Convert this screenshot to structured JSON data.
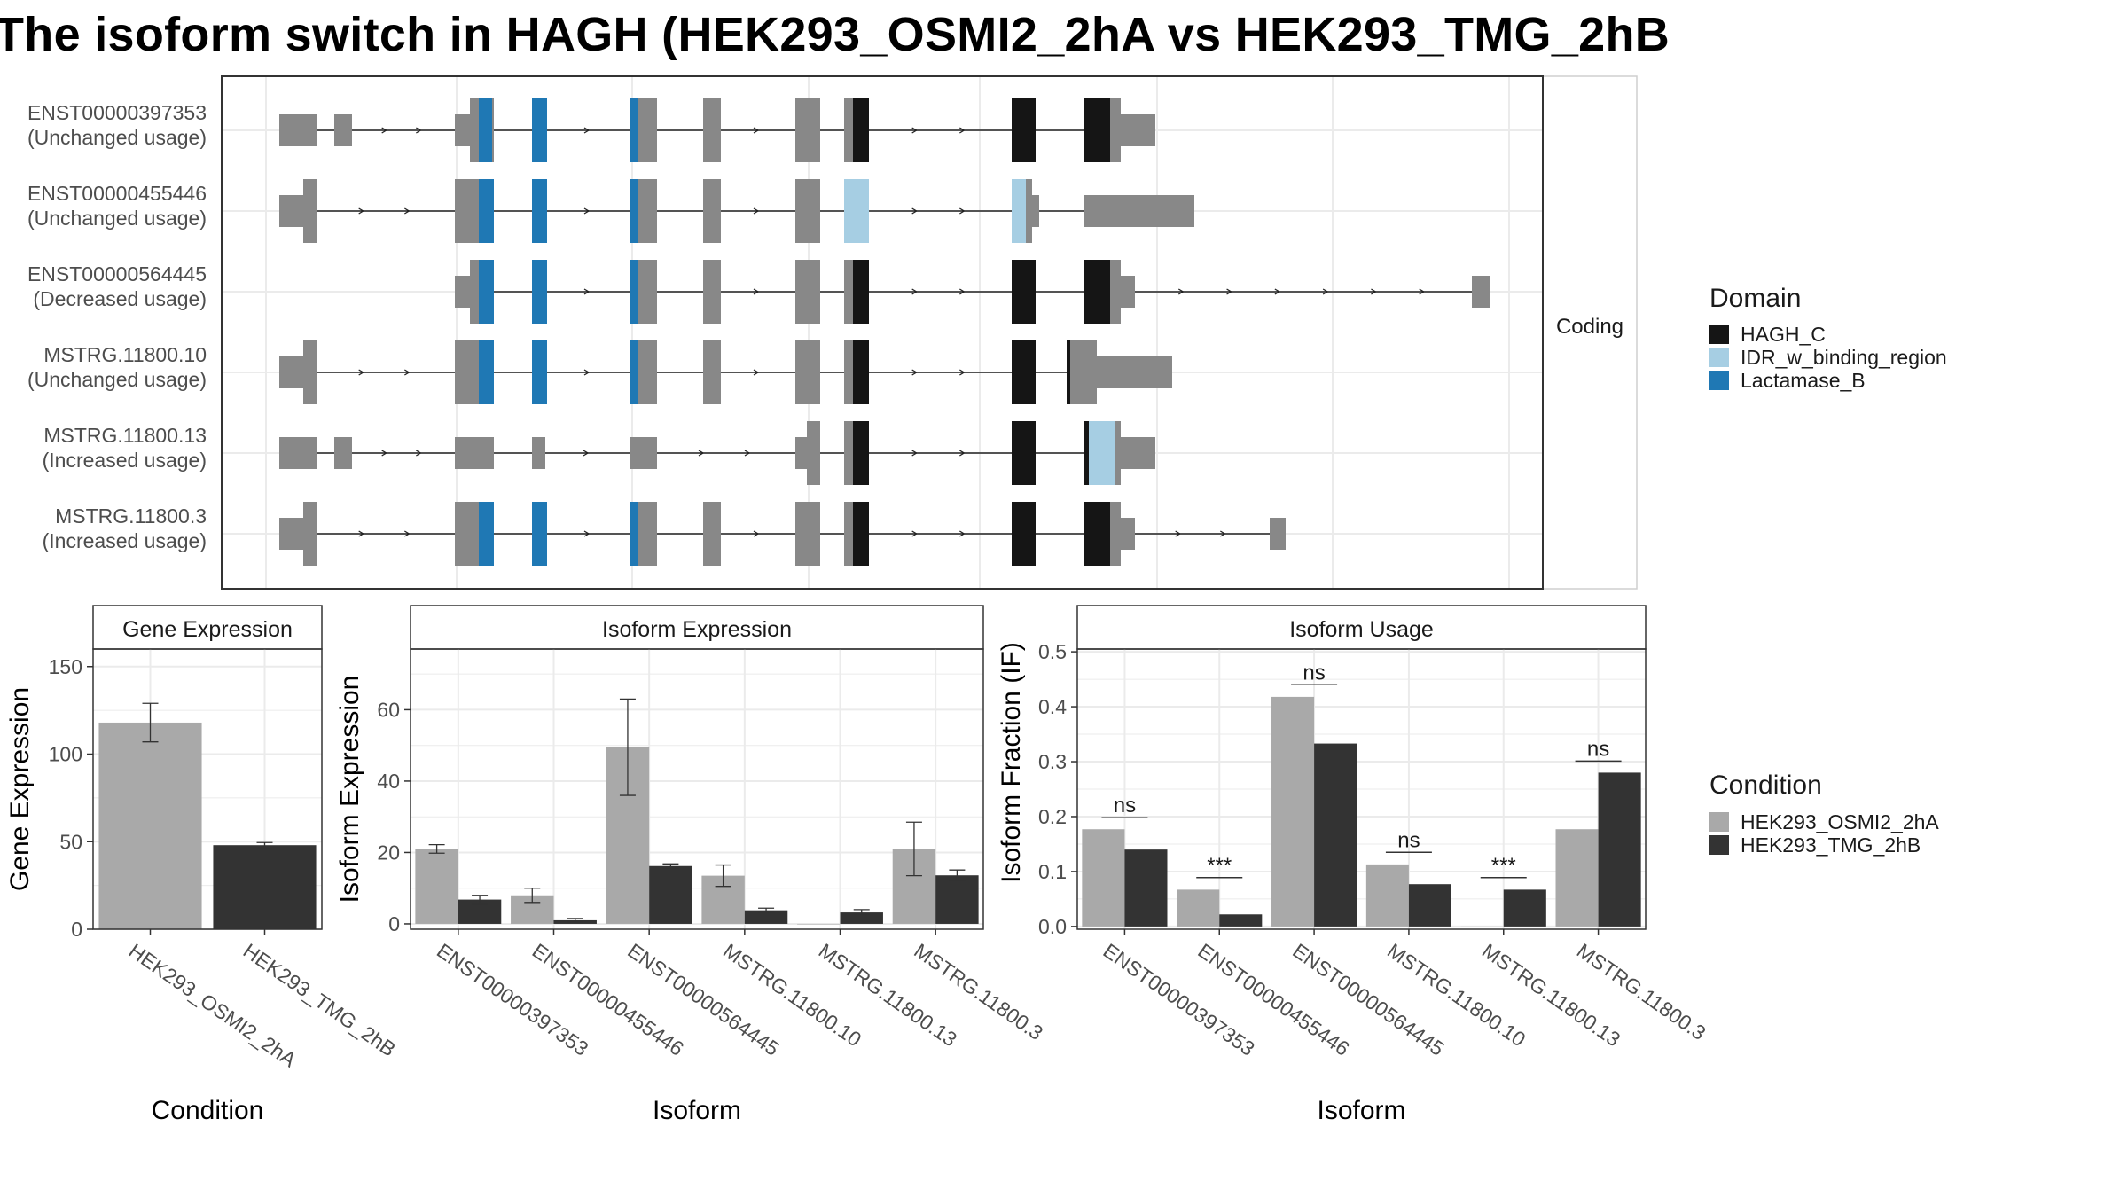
{
  "title": "The isoform switch in HAGH (HEK293_OSMI2_2hA vs HEK293_TMG_2hB",
  "facet_label": "Coding",
  "colors": {
    "exon_gray": "#888888",
    "HAGH_C": "#151515",
    "IDR_w_binding_region": "#A6CEE3",
    "Lactamase_B": "#1F78B4",
    "cond_A": "#A9A9A9",
    "cond_B": "#333333",
    "grid": "#EBEBEB",
    "panel_border": "#333333",
    "strip_fill": "#FFFFFF"
  },
  "domain_legend": {
    "title": "Domain",
    "entries": [
      "HAGH_C",
      "IDR_w_binding_region",
      "Lactamase_B"
    ]
  },
  "condition_legend": {
    "title": "Condition",
    "entries": [
      "HEK293_OSMI2_2hA",
      "HEK293_TMG_2hB"
    ]
  },
  "transcripts": [
    {
      "id": "ENST00000397353",
      "usage": "(Unchanged usage)"
    },
    {
      "id": "ENST00000455446",
      "usage": "(Unchanged usage)"
    },
    {
      "id": "ENST00000564445",
      "usage": "(Decreased usage)"
    },
    {
      "id": "MSTRG.11800.10",
      "usage": "(Unchanged usage)"
    },
    {
      "id": "MSTRG.11800.13",
      "usage": "(Increased usage)"
    },
    {
      "id": "MSTRG.11800.3",
      "usage": "(Increased usage)"
    }
  ],
  "chart_data": [
    {
      "type": "bar",
      "title": "Gene Expression",
      "xlabel": "Condition",
      "ylabel": "Gene Expression",
      "ylim": [
        0,
        160
      ],
      "yticks": [
        0,
        50,
        100,
        150
      ],
      "categories": [
        "HEK293_OSMI2_2hA",
        "HEK293_TMG_2hB"
      ],
      "values": [
        118,
        48
      ],
      "errors": [
        11,
        1.5
      ],
      "grid": true
    },
    {
      "type": "bar",
      "title": "Isoform Expression",
      "xlabel": "Isoform",
      "ylabel": "Isoform Expression",
      "ylim": [
        -1.5,
        77
      ],
      "yticks": [
        0,
        20,
        40,
        60
      ],
      "categories": [
        "ENST00000397353",
        "ENST00000455446",
        "ENST00000564445",
        "MSTRG.11800.10",
        "MSTRG.11800.13",
        "MSTRG.11800.3"
      ],
      "series": [
        {
          "name": "HEK293_OSMI2_2hA",
          "values": [
            21,
            8,
            49.5,
            13.5,
            0,
            21
          ],
          "errors": [
            1.2,
            2,
            13.5,
            3,
            0,
            7.5
          ]
        },
        {
          "name": "HEK293_TMG_2hB",
          "values": [
            6.8,
            1,
            16.2,
            3.8,
            3.2,
            13.6
          ],
          "errors": [
            1.2,
            0.5,
            0.6,
            0.6,
            0.8,
            1.5
          ]
        }
      ],
      "grid": true
    },
    {
      "type": "bar",
      "title": "Isoform Usage",
      "xlabel": "Isoform",
      "ylabel": "Isoform Fraction (IF)",
      "ylim": [
        -0.005,
        0.505
      ],
      "yticks": [
        0.0,
        0.1,
        0.2,
        0.3,
        0.4,
        0.5
      ],
      "ytick_labels": [
        "0.0",
        "0.1",
        "0.2",
        "0.3",
        "0.4",
        "0.5"
      ],
      "categories": [
        "ENST00000397353",
        "ENST00000455446",
        "ENST00000564445",
        "MSTRG.11800.10",
        "MSTRG.11800.13",
        "MSTRG.11800.3"
      ],
      "series": [
        {
          "name": "HEK293_OSMI2_2hA",
          "values": [
            0.177,
            0.067,
            0.418,
            0.113,
            0.0,
            0.177
          ]
        },
        {
          "name": "HEK293_TMG_2hB",
          "values": [
            0.14,
            0.022,
            0.333,
            0.077,
            0.067,
            0.28
          ]
        }
      ],
      "significance": [
        "ns",
        "***",
        "ns",
        "ns",
        "***",
        "ns"
      ],
      "significance_y": [
        0.198,
        0.089,
        0.44,
        0.135,
        0.089,
        0.301
      ],
      "grid": true
    }
  ]
}
